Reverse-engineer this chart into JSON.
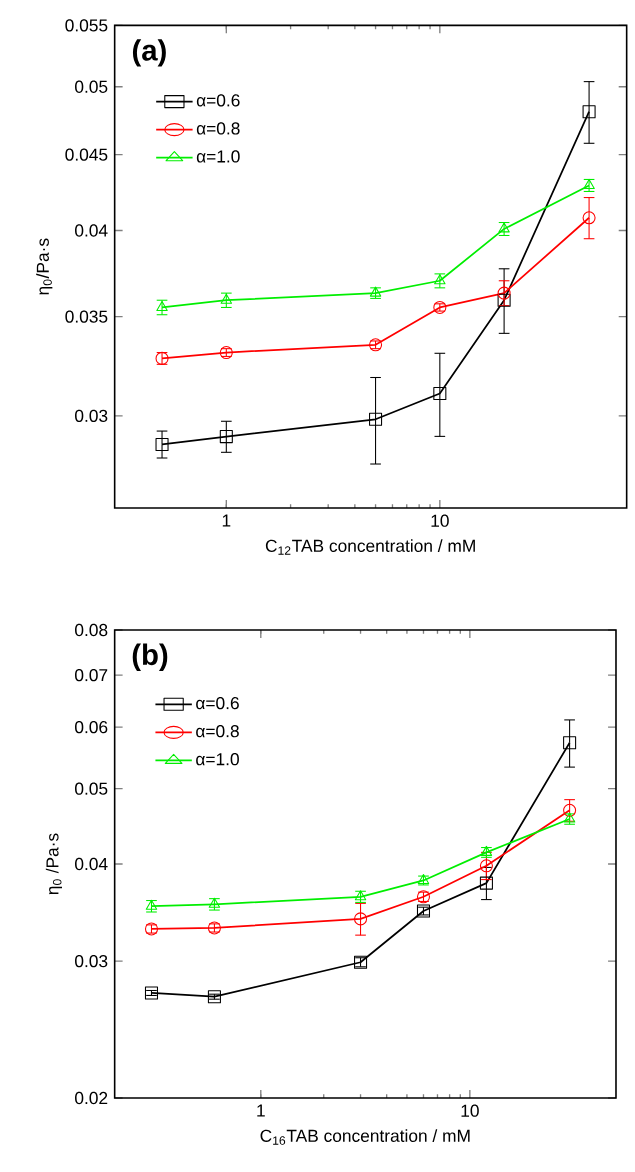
{
  "chart_data": [
    {
      "type": "line",
      "title": "(a)",
      "xlabel": "C$_{12}$TAB concentration / mM",
      "ylabel": "η$_{0}$/Pa·s",
      "log": "xy",
      "xlim": [
        0.3,
        75
      ],
      "ylim": [
        0.026,
        0.055
      ],
      "xticks": [
        1,
        10
      ],
      "yticks": [
        0.03,
        0.035,
        0.04,
        0.045,
        0.05,
        0.055
      ],
      "legend": "top left",
      "grid": false,
      "line_style": "solid",
      "x": [
        0.5,
        1,
        5,
        10,
        20,
        50
      ],
      "series": [
        {
          "name": "α=0.6",
          "color": "#000000",
          "marker": "square",
          "values": [
            0.0287,
            0.02905,
            0.02984,
            0.03106,
            0.0359,
            0.0481
          ],
          "errors": [
            0.0006,
            0.0007,
            0.002,
            0.002,
            0.0018,
            0.0023
          ]
        },
        {
          "name": "α=0.8",
          "color": "#ff0000",
          "marker": "circle",
          "values": [
            0.0328,
            0.0331,
            0.0335,
            0.0355,
            0.0363,
            0.0408
          ],
          "errors": [
            0.0003,
            0.0002,
            0.0002,
            0.0002,
            0.0007,
            0.0013
          ]
        },
        {
          "name": "α=1.0",
          "color": "#00ee00",
          "marker": "triangle",
          "values": [
            0.0355,
            0.0359,
            0.0363,
            0.037,
            0.0401,
            0.0429
          ],
          "errors": [
            0.0004,
            0.0004,
            0.0003,
            0.0004,
            0.0004,
            0.0004
          ]
        }
      ]
    },
    {
      "type": "line",
      "title": "(b)",
      "xlabel": "C$_{16}$TAB concentration / mM",
      "ylabel": "η$_{0}$ /Pa·s",
      "log": "xy",
      "xlim": [
        0.2,
        50
      ],
      "ylim": [
        0.02,
        0.08
      ],
      "xticks": [
        1,
        10
      ],
      "yticks": [
        0.02,
        0.03,
        0.04,
        0.05,
        0.06,
        0.07,
        0.08
      ],
      "legend": "top left",
      "grid": false,
      "line_style": "solid",
      "x": [
        0.3,
        0.6,
        3,
        6,
        12,
        30
      ],
      "series": [
        {
          "name": "α=0.6",
          "color": "#000000",
          "marker": "square",
          "values": [
            0.0273,
            0.027,
            0.0299,
            0.0348,
            0.0378,
            0.0573
          ],
          "errors": [
            0.0002,
            0.0002,
            0.0004,
            0.0004,
            0.0018,
            0.004
          ]
        },
        {
          "name": "α=0.8",
          "color": "#ff0000",
          "marker": "circle",
          "values": [
            0.033,
            0.0331,
            0.034,
            0.0363,
            0.0398,
            0.0469
          ],
          "errors": [
            0.0004,
            0.0004,
            0.0016,
            0.0005,
            0.0016,
            0.0015
          ]
        },
        {
          "name": "α=1.0",
          "color": "#00ee00",
          "marker": "triangle",
          "values": [
            0.0353,
            0.0355,
            0.0363,
            0.0381,
            0.0414,
            0.0457
          ],
          "errors": [
            0.0006,
            0.0006,
            0.0006,
            0.0005,
            0.0006,
            0.0007
          ]
        }
      ]
    }
  ]
}
